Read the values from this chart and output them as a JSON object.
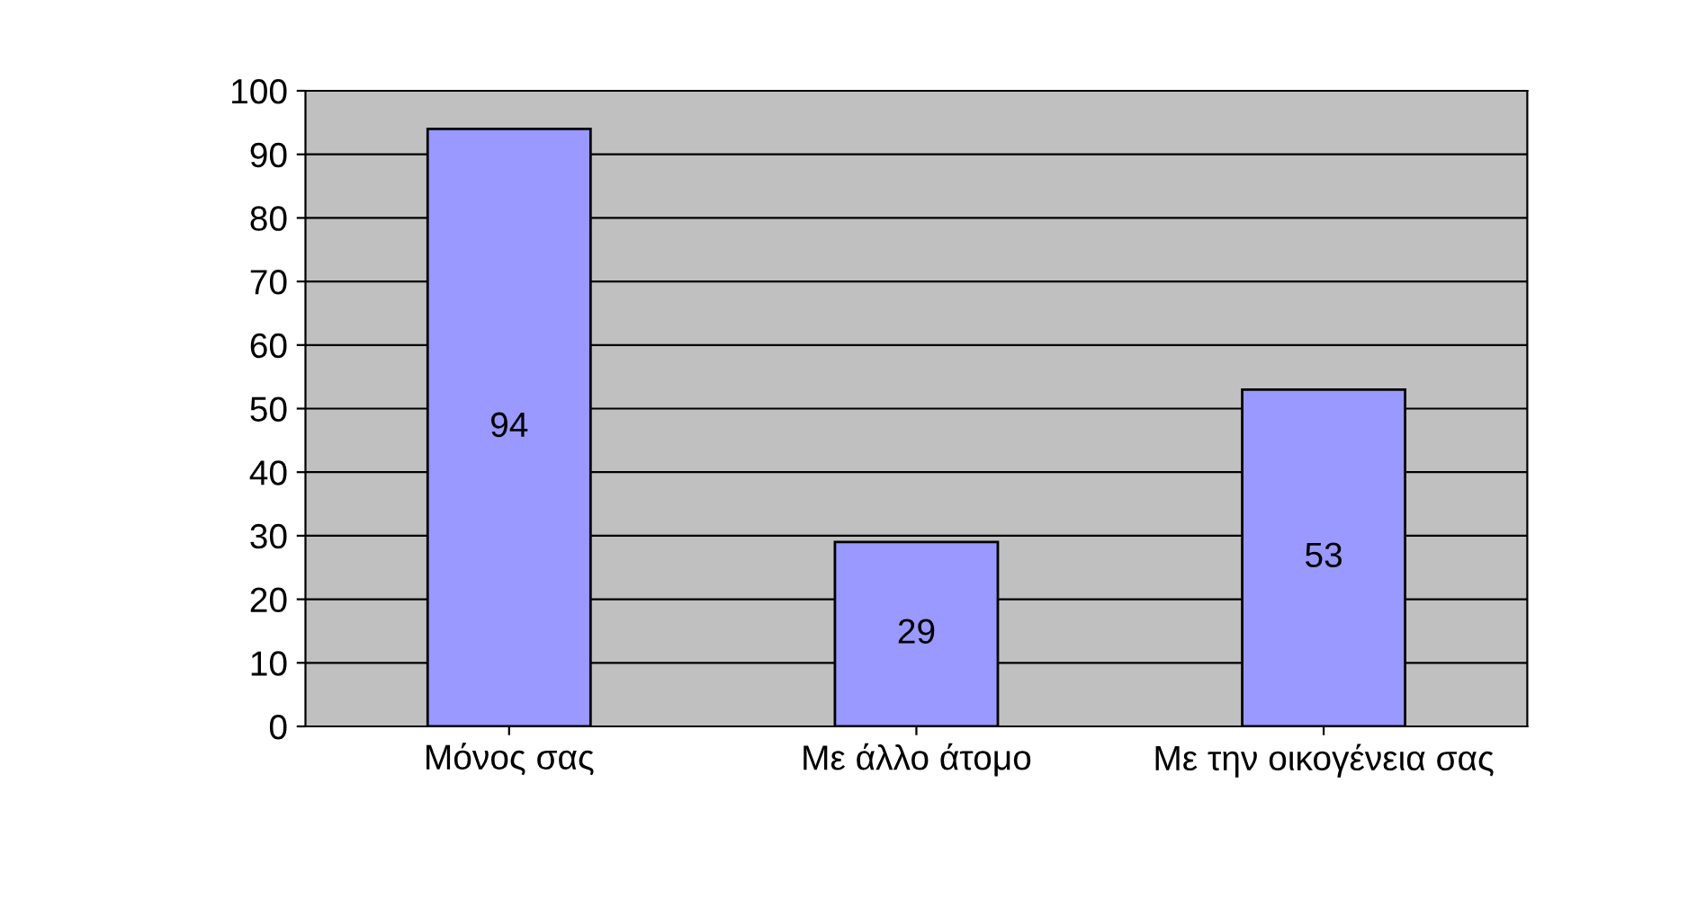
{
  "chart_data": {
    "type": "bar",
    "categories": [
      "Μόνος σας",
      "Με άλλο άτομο",
      "Με την οικογένεια σας"
    ],
    "values": [
      94,
      29,
      53
    ],
    "color": "#9999ff",
    "ylim": [
      0,
      100
    ],
    "yticks": [
      0,
      10,
      20,
      30,
      40,
      50,
      60,
      70,
      80,
      90,
      100
    ],
    "grid": "y",
    "data_labels": true
  }
}
